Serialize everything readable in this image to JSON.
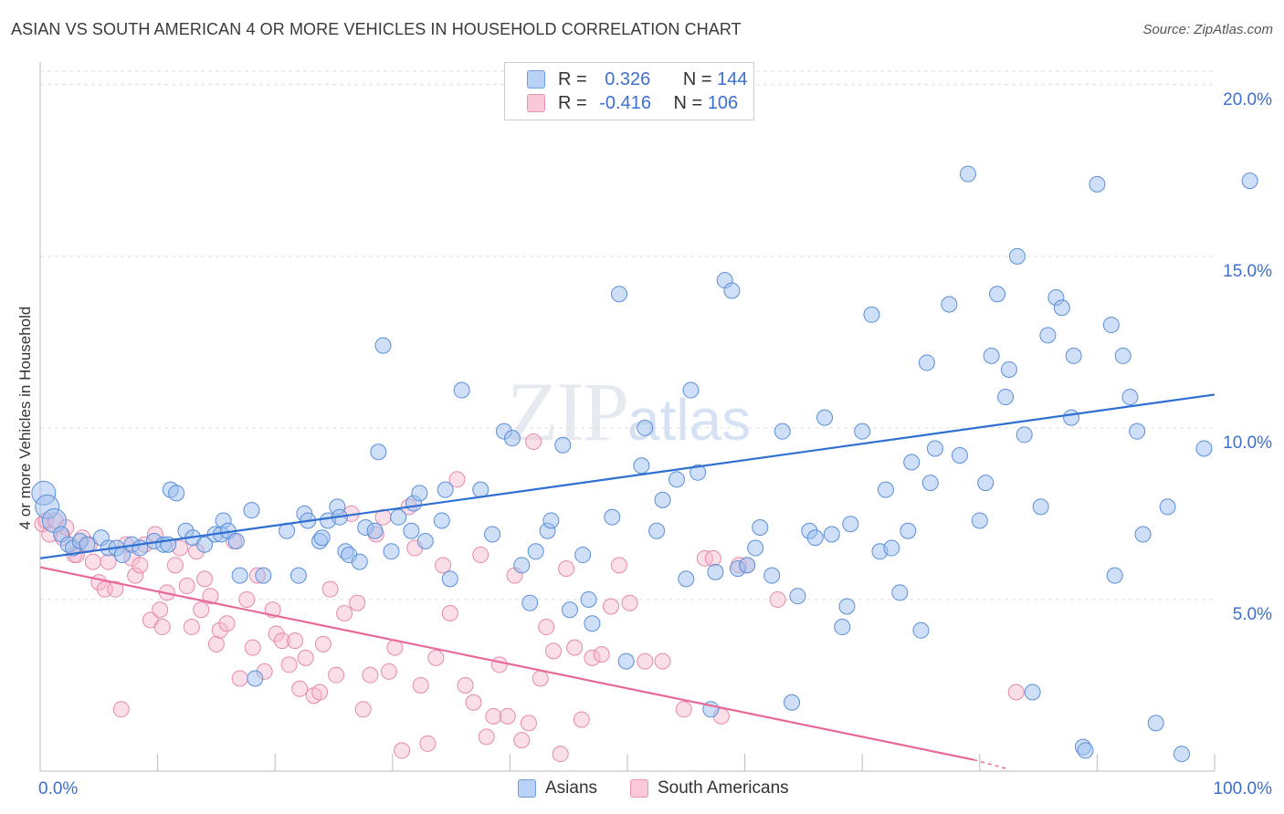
{
  "header": {
    "title": "ASIAN VS SOUTH AMERICAN 4 OR MORE VEHICLES IN HOUSEHOLD CORRELATION CHART",
    "source": "Source: ZipAtlas.com"
  },
  "watermark": {
    "zip": "ZIP",
    "atlas": "atlas"
  },
  "legend": {
    "asian": {
      "r_label": "R =",
      "r_value": "0.326",
      "n_label": "N =",
      "n_value": "144",
      "color": "#7aa6e8"
    },
    "south": {
      "r_label": "R =",
      "r_value": "-0.416",
      "n_label": "N =",
      "n_value": "106",
      "color": "#f09bb8"
    }
  },
  "bottom_legend": {
    "asian": "Asians",
    "south": "South Americans"
  },
  "colors": {
    "asian_fill": "#9dbff0",
    "asian_stroke": "#5b8fd8",
    "asian_line": "#2e6fd1",
    "south_fill": "#f6b8cd",
    "south_stroke": "#e68aa9",
    "south_line": "#e8689a",
    "tick_text": "#3b6fd0",
    "grid": "#dddddd"
  },
  "chart_data": {
    "type": "scatter",
    "title": "ASIAN VS SOUTH AMERICAN 4 OR MORE VEHICLES IN HOUSEHOLD CORRELATION CHART",
    "xlabel": "",
    "ylabel": "4 or more Vehicles in Household",
    "xlim": [
      0,
      100
    ],
    "ylim": [
      0,
      20.5
    ],
    "x_tick_labels": [
      "0.0%",
      "100.0%"
    ],
    "y_ticks": [
      5,
      10,
      15,
      20
    ],
    "y_tick_labels": [
      "5.0%",
      "10.0%",
      "15.0%",
      "20.0%"
    ],
    "grid": "horizontal dashed",
    "legend_position": "top-center",
    "series": [
      {
        "name": "Asians",
        "trend": {
          "x": [
            0,
            100
          ],
          "y": [
            6.2,
            10.97
          ]
        },
        "points": [
          [
            0.3,
            8.1
          ],
          [
            0.6,
            7.7
          ],
          [
            1.2,
            7.3
          ],
          [
            1.8,
            6.9
          ],
          [
            2.4,
            6.6
          ],
          [
            2.8,
            6.5
          ],
          [
            3.4,
            6.7
          ],
          [
            4.0,
            6.6
          ],
          [
            5.2,
            6.8
          ],
          [
            5.8,
            6.5
          ],
          [
            6.5,
            6.5
          ],
          [
            7.0,
            6.3
          ],
          [
            7.8,
            6.6
          ],
          [
            8.5,
            6.5
          ],
          [
            9.7,
            6.7
          ],
          [
            10.5,
            6.6
          ],
          [
            10.9,
            6.6
          ],
          [
            11.1,
            8.2
          ],
          [
            11.6,
            8.1
          ],
          [
            12.4,
            7.0
          ],
          [
            13.0,
            6.8
          ],
          [
            14.0,
            6.6
          ],
          [
            14.9,
            6.9
          ],
          [
            15.4,
            6.9
          ],
          [
            15.6,
            7.3
          ],
          [
            16.0,
            7.0
          ],
          [
            16.7,
            6.7
          ],
          [
            17.0,
            5.7
          ],
          [
            18.0,
            7.6
          ],
          [
            18.3,
            2.7
          ],
          [
            19.0,
            5.7
          ],
          [
            21.0,
            7.0
          ],
          [
            22.5,
            7.5
          ],
          [
            22.0,
            5.7
          ],
          [
            22.8,
            7.3
          ],
          [
            23.8,
            6.7
          ],
          [
            24.0,
            6.8
          ],
          [
            24.5,
            7.3
          ],
          [
            25.3,
            7.7
          ],
          [
            25.5,
            7.4
          ],
          [
            26.0,
            6.4
          ],
          [
            26.3,
            6.3
          ],
          [
            27.2,
            6.1
          ],
          [
            27.7,
            7.1
          ],
          [
            28.5,
            7.0
          ],
          [
            28.8,
            9.3
          ],
          [
            29.2,
            12.4
          ],
          [
            29.9,
            6.4
          ],
          [
            30.5,
            7.4
          ],
          [
            31.6,
            7.0
          ],
          [
            31.8,
            7.8
          ],
          [
            32.3,
            8.1
          ],
          [
            32.8,
            6.7
          ],
          [
            34.2,
            7.3
          ],
          [
            34.5,
            8.2
          ],
          [
            34.9,
            5.6
          ],
          [
            35.9,
            11.1
          ],
          [
            37.5,
            8.2
          ],
          [
            38.5,
            6.9
          ],
          [
            39.5,
            9.9
          ],
          [
            40.2,
            9.7
          ],
          [
            41.0,
            6.0
          ],
          [
            41.7,
            4.9
          ],
          [
            42.2,
            6.4
          ],
          [
            43.2,
            7.0
          ],
          [
            43.5,
            7.3
          ],
          [
            44.5,
            9.5
          ],
          [
            45.1,
            4.7
          ],
          [
            46.2,
            6.3
          ],
          [
            46.7,
            5.0
          ],
          [
            47.0,
            4.3
          ],
          [
            48.7,
            7.4
          ],
          [
            49.3,
            13.9
          ],
          [
            49.9,
            3.2
          ],
          [
            51.2,
            8.9
          ],
          [
            51.5,
            10.0
          ],
          [
            52.5,
            7.0
          ],
          [
            53.0,
            7.9
          ],
          [
            54.2,
            8.5
          ],
          [
            55.0,
            5.6
          ],
          [
            55.4,
            11.1
          ],
          [
            56.0,
            8.7
          ],
          [
            57.1,
            1.8
          ],
          [
            57.5,
            5.8
          ],
          [
            58.3,
            14.3
          ],
          [
            58.9,
            14.0
          ],
          [
            59.4,
            5.9
          ],
          [
            60.2,
            6.0
          ],
          [
            60.9,
            6.5
          ],
          [
            61.3,
            7.1
          ],
          [
            62.3,
            5.7
          ],
          [
            63.2,
            9.9
          ],
          [
            64.0,
            2.0
          ],
          [
            64.5,
            5.1
          ],
          [
            65.5,
            7.0
          ],
          [
            66.0,
            6.8
          ],
          [
            66.8,
            10.3
          ],
          [
            67.4,
            6.9
          ],
          [
            68.3,
            4.2
          ],
          [
            68.7,
            4.8
          ],
          [
            69.0,
            7.2
          ],
          [
            70.0,
            9.9
          ],
          [
            70.8,
            13.3
          ],
          [
            71.5,
            6.4
          ],
          [
            72.0,
            8.2
          ],
          [
            72.5,
            6.5
          ],
          [
            73.2,
            5.2
          ],
          [
            73.9,
            7.0
          ],
          [
            74.2,
            9.0
          ],
          [
            75.0,
            4.1
          ],
          [
            75.5,
            11.9
          ],
          [
            75.8,
            8.4
          ],
          [
            76.2,
            9.4
          ],
          [
            77.4,
            13.6
          ],
          [
            78.3,
            9.2
          ],
          [
            79.0,
            17.4
          ],
          [
            80.0,
            7.3
          ],
          [
            80.5,
            8.4
          ],
          [
            81.0,
            12.1
          ],
          [
            81.5,
            13.9
          ],
          [
            82.2,
            10.9
          ],
          [
            82.5,
            11.7
          ],
          [
            83.2,
            15.0
          ],
          [
            83.8,
            9.8
          ],
          [
            84.5,
            2.3
          ],
          [
            85.2,
            7.7
          ],
          [
            85.8,
            12.7
          ],
          [
            86.5,
            13.8
          ],
          [
            87.0,
            13.5
          ],
          [
            87.8,
            10.3
          ],
          [
            88.0,
            12.1
          ],
          [
            88.8,
            0.7
          ],
          [
            89.0,
            0.6
          ],
          [
            90.0,
            17.1
          ],
          [
            91.2,
            13.0
          ],
          [
            91.5,
            5.7
          ],
          [
            92.2,
            12.1
          ],
          [
            92.8,
            10.9
          ],
          [
            93.4,
            9.9
          ],
          [
            93.9,
            6.9
          ],
          [
            95.0,
            1.4
          ],
          [
            96.0,
            7.7
          ],
          [
            97.2,
            0.5
          ],
          [
            99.1,
            9.4
          ],
          [
            103.0,
            17.2
          ]
        ]
      },
      {
        "name": "South Americans",
        "trend": {
          "x": [
            0,
            79.5
          ],
          "y": [
            5.94,
            0.33
          ]
        },
        "points": [
          [
            0.2,
            7.2
          ],
          [
            0.5,
            7.3
          ],
          [
            0.8,
            6.9
          ],
          [
            1.3,
            7.3
          ],
          [
            1.9,
            6.8
          ],
          [
            2.2,
            7.1
          ],
          [
            2.9,
            6.3
          ],
          [
            3.1,
            6.3
          ],
          [
            3.6,
            6.8
          ],
          [
            4.2,
            6.6
          ],
          [
            4.5,
            6.1
          ],
          [
            5.0,
            5.5
          ],
          [
            5.5,
            5.3
          ],
          [
            5.8,
            6.1
          ],
          [
            6.4,
            5.3
          ],
          [
            6.9,
            1.8
          ],
          [
            7.3,
            6.6
          ],
          [
            7.8,
            6.2
          ],
          [
            8.1,
            5.7
          ],
          [
            8.5,
            6.0
          ],
          [
            8.9,
            6.6
          ],
          [
            9.4,
            4.4
          ],
          [
            9.8,
            6.9
          ],
          [
            10.2,
            4.7
          ],
          [
            10.4,
            4.2
          ],
          [
            10.8,
            5.2
          ],
          [
            11.5,
            6.0
          ],
          [
            11.9,
            6.5
          ],
          [
            12.5,
            5.4
          ],
          [
            12.9,
            4.2
          ],
          [
            13.3,
            6.4
          ],
          [
            13.7,
            4.7
          ],
          [
            14.0,
            5.6
          ],
          [
            14.5,
            5.1
          ],
          [
            15.0,
            3.7
          ],
          [
            15.3,
            4.1
          ],
          [
            15.9,
            4.3
          ],
          [
            16.5,
            6.7
          ],
          [
            17.0,
            2.7
          ],
          [
            17.6,
            5.0
          ],
          [
            18.1,
            3.6
          ],
          [
            18.5,
            5.7
          ],
          [
            19.1,
            2.9
          ],
          [
            19.8,
            4.7
          ],
          [
            20.1,
            4.0
          ],
          [
            20.6,
            3.8
          ],
          [
            21.2,
            3.1
          ],
          [
            21.7,
            3.8
          ],
          [
            22.1,
            2.4
          ],
          [
            22.6,
            3.3
          ],
          [
            23.3,
            2.2
          ],
          [
            23.8,
            2.3
          ],
          [
            24.1,
            3.7
          ],
          [
            24.7,
            5.3
          ],
          [
            25.2,
            2.8
          ],
          [
            25.9,
            4.6
          ],
          [
            26.5,
            7.5
          ],
          [
            27.0,
            4.9
          ],
          [
            27.5,
            1.8
          ],
          [
            28.1,
            2.8
          ],
          [
            28.6,
            6.9
          ],
          [
            29.2,
            7.4
          ],
          [
            29.7,
            2.9
          ],
          [
            30.2,
            3.6
          ],
          [
            30.8,
            0.6
          ],
          [
            31.4,
            7.7
          ],
          [
            31.9,
            6.5
          ],
          [
            32.4,
            2.5
          ],
          [
            33.0,
            0.8
          ],
          [
            33.7,
            3.3
          ],
          [
            34.3,
            6.0
          ],
          [
            34.9,
            4.6
          ],
          [
            35.5,
            8.5
          ],
          [
            36.2,
            2.5
          ],
          [
            36.9,
            2.0
          ],
          [
            37.5,
            6.3
          ],
          [
            38.0,
            1.0
          ],
          [
            38.6,
            1.6
          ],
          [
            39.1,
            3.1
          ],
          [
            39.8,
            1.6
          ],
          [
            40.4,
            5.7
          ],
          [
            41.0,
            0.9
          ],
          [
            41.6,
            1.4
          ],
          [
            42.0,
            9.6
          ],
          [
            42.6,
            2.7
          ],
          [
            43.1,
            4.2
          ],
          [
            43.7,
            3.5
          ],
          [
            44.3,
            0.5
          ],
          [
            44.8,
            5.9
          ],
          [
            45.5,
            3.6
          ],
          [
            46.1,
            1.5
          ],
          [
            47.0,
            3.3
          ],
          [
            47.8,
            3.4
          ],
          [
            48.6,
            4.8
          ],
          [
            49.3,
            6.0
          ],
          [
            50.2,
            4.9
          ],
          [
            51.5,
            3.2
          ],
          [
            53.0,
            3.2
          ],
          [
            54.8,
            1.8
          ],
          [
            56.6,
            6.2
          ],
          [
            57.3,
            6.2
          ],
          [
            58.0,
            1.6
          ],
          [
            59.5,
            6.0
          ],
          [
            60.2,
            6.0
          ],
          [
            62.8,
            5.0
          ],
          [
            83.1,
            2.3
          ]
        ]
      }
    ]
  }
}
